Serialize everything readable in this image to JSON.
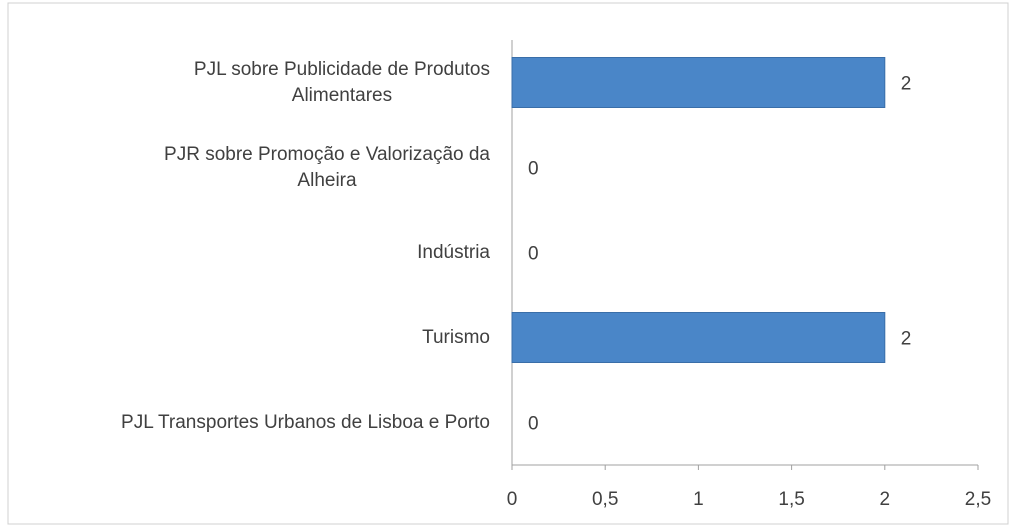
{
  "chart_data": {
    "type": "bar",
    "orientation": "horizontal",
    "categories": [
      "PJL sobre Publicidade de Produtos\nAlimentares",
      "PJR sobre Promoção e Valorização da\nAlheira",
      "Indústria",
      "Turismo",
      "PJL Transportes Urbanos de Lisboa e Porto"
    ],
    "values": [
      2,
      0,
      0,
      2,
      0
    ],
    "color": "#4a86c8",
    "xlim": [
      0,
      2.5
    ],
    "xticks": [
      0,
      {
        "value": 0.5,
        "label": "0,5"
      },
      1,
      {
        "value": 1.5,
        "label": "1,5"
      },
      2,
      {
        "value": 2.5,
        "label": "2,5"
      }
    ],
    "grid": false
  }
}
